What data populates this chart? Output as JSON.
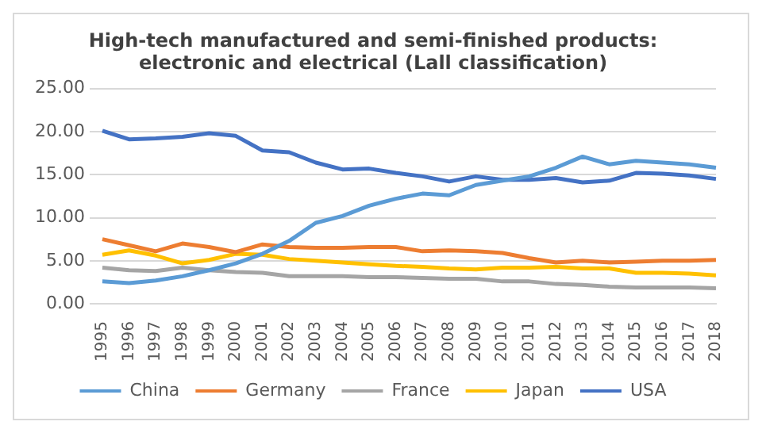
{
  "chart_data": {
    "type": "line",
    "title": [
      "High-tech manufactured and semi-finished products:",
      "electronic and electrical (Lall classification)"
    ],
    "categories": [
      "1995",
      "1996",
      "1997",
      "1998",
      "1999",
      "2000",
      "2001",
      "2002",
      "2003",
      "2004",
      "2005",
      "2006",
      "2007",
      "2008",
      "2009",
      "2010",
      "2011",
      "2012",
      "2013",
      "2014",
      "2015",
      "2016",
      "2017",
      "2018"
    ],
    "series": [
      {
        "name": "China",
        "color": "#5b9bd5",
        "values": [
          2.6,
          2.4,
          2.7,
          3.2,
          3.9,
          4.7,
          5.8,
          7.3,
          9.4,
          10.2,
          11.4,
          12.2,
          12.8,
          12.6,
          13.8,
          14.3,
          14.8,
          15.8,
          17.1,
          16.2,
          16.6,
          16.4,
          16.2,
          15.8
        ]
      },
      {
        "name": "Germany",
        "color": "#ed7d31",
        "values": [
          7.5,
          6.8,
          6.1,
          7.0,
          6.6,
          6.0,
          6.9,
          6.6,
          6.5,
          6.5,
          6.6,
          6.6,
          6.1,
          6.2,
          6.1,
          5.9,
          5.3,
          4.8,
          5.0,
          4.8,
          4.9,
          5.0,
          5.0,
          5.1
        ]
      },
      {
        "name": "France",
        "color": "#a5a5a5",
        "values": [
          4.2,
          3.9,
          3.8,
          4.2,
          3.9,
          3.7,
          3.6,
          3.2,
          3.2,
          3.2,
          3.1,
          3.1,
          3.0,
          2.9,
          2.9,
          2.6,
          2.6,
          2.3,
          2.2,
          2.0,
          1.9,
          1.9,
          1.9,
          1.8
        ]
      },
      {
        "name": "Japan",
        "color": "#ffc000",
        "values": [
          5.7,
          6.2,
          5.6,
          4.7,
          5.1,
          5.8,
          5.7,
          5.2,
          5.0,
          4.8,
          4.6,
          4.4,
          4.3,
          4.1,
          4.0,
          4.2,
          4.2,
          4.3,
          4.1,
          4.1,
          3.6,
          3.6,
          3.5,
          3.3
        ]
      },
      {
        "name": "USA",
        "color": "#4472c4",
        "values": [
          20.1,
          19.1,
          19.2,
          19.4,
          19.8,
          19.5,
          17.8,
          17.6,
          16.4,
          15.6,
          15.7,
          15.2,
          14.8,
          14.2,
          14.8,
          14.4,
          14.4,
          14.6,
          14.1,
          14.3,
          15.2,
          15.1,
          14.9,
          14.5
        ]
      }
    ],
    "ylim": [
      0,
      25
    ],
    "yticks": [
      {
        "value": 0,
        "label": "0.00"
      },
      {
        "value": 5,
        "label": "5.00"
      },
      {
        "value": 10,
        "label": "10.00"
      },
      {
        "value": 15,
        "label": "15.00"
      },
      {
        "value": 20,
        "label": "20.00"
      },
      {
        "value": 25,
        "label": "25.00"
      }
    ],
    "grid": "y",
    "legend": "bottom",
    "marker": "none",
    "line_style": "solid"
  }
}
